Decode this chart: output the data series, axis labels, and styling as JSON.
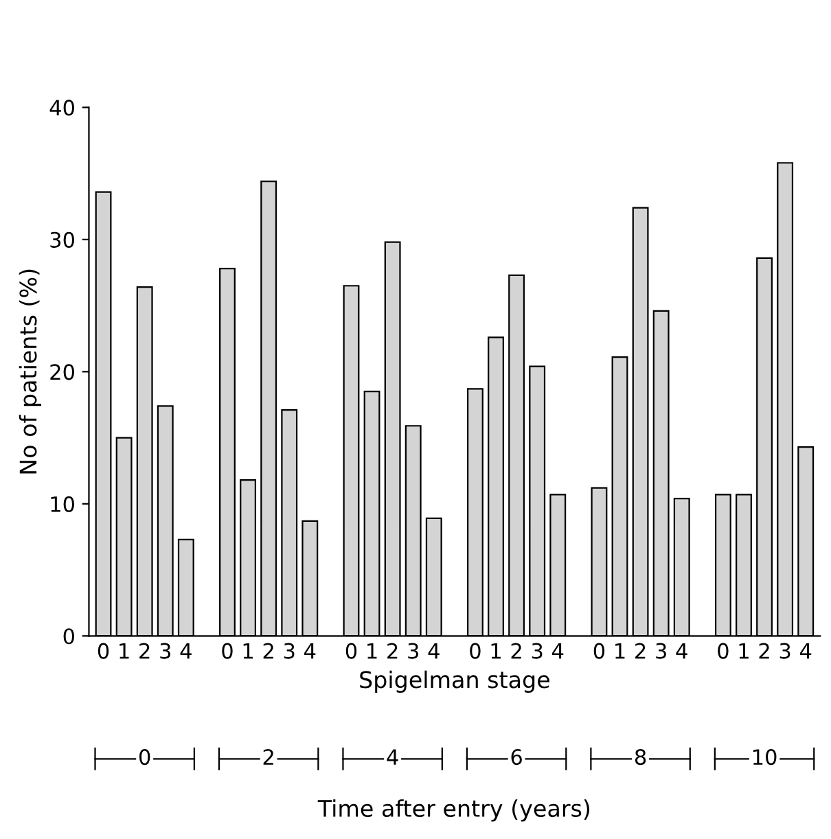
{
  "chart_data": {
    "type": "bar",
    "ylabel": "No of patients (%)",
    "xlabel": "Spigelman stage",
    "categories": [
      "0",
      "1",
      "2",
      "3",
      "4",
      null,
      "0",
      "1",
      "2",
      "3",
      "4",
      null,
      "0",
      "1",
      "2",
      "3",
      "4",
      null,
      "0",
      "1",
      "2",
      "3",
      "4",
      null,
      "0",
      "1",
      "2",
      "3",
      "4",
      null,
      "0",
      "1",
      "2",
      "3",
      "4"
    ],
    "values": [
      33.6,
      15.0,
      26.4,
      17.4,
      7.3,
      null,
      27.8,
      11.8,
      34.4,
      17.1,
      8.7,
      null,
      26.5,
      18.5,
      29.8,
      15.9,
      8.9,
      null,
      18.7,
      22.6,
      27.3,
      20.4,
      10.7,
      null,
      11.2,
      21.1,
      32.4,
      24.6,
      10.4,
      null,
      10.7,
      10.7,
      28.6,
      35.8,
      14.3
    ],
    "color": "#d4d4d4",
    "ylim": [
      0,
      40
    ],
    "yticks": [
      0,
      10,
      20,
      30,
      40
    ],
    "grid": false,
    "annotations": [
      "0",
      "2",
      "4",
      "6",
      "8",
      "10",
      "Time after entry (years)"
    ]
  }
}
